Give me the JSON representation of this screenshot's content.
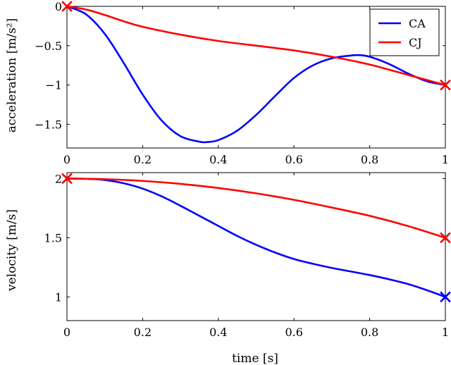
{
  "chart_data": [
    {
      "type": "line",
      "title": "",
      "xlabel": "",
      "ylabel": "acceleration [m/s²]",
      "xlim": [
        0,
        1
      ],
      "ylim": [
        -1.8,
        0
      ],
      "xticks": [
        0,
        0.2,
        0.4,
        0.6,
        0.8,
        1
      ],
      "xtick_labels": [
        "0",
        "0.2",
        "0.4",
        "0.6",
        "0.8",
        "1"
      ],
      "yticks": [
        0,
        -0.5,
        -1,
        -1.5
      ],
      "ytick_labels": [
        "0",
        "−0.5",
        "−1",
        "−1.5"
      ],
      "grid": false,
      "legend": {
        "placement": "top-right",
        "entries": [
          "CA",
          "CJ"
        ]
      },
      "series": [
        {
          "name": "CA",
          "color": "#0000ff",
          "x": [
            0,
            0.05,
            0.1,
            0.15,
            0.2,
            0.25,
            0.3,
            0.35,
            0.37,
            0.4,
            0.45,
            0.5,
            0.55,
            0.6,
            0.65,
            0.7,
            0.75,
            0.77,
            0.8,
            0.85,
            0.9,
            0.95,
            1
          ],
          "y": [
            0,
            -0.1,
            -0.35,
            -0.72,
            -1.12,
            -1.45,
            -1.65,
            -1.72,
            -1.725,
            -1.7,
            -1.58,
            -1.38,
            -1.14,
            -0.91,
            -0.75,
            -0.66,
            -0.625,
            -0.62,
            -0.64,
            -0.73,
            -0.85,
            -0.95,
            -1
          ]
        },
        {
          "name": "CJ",
          "color": "#ff0000",
          "x": [
            0,
            0.05,
            0.1,
            0.15,
            0.2,
            0.3,
            0.4,
            0.5,
            0.6,
            0.7,
            0.8,
            0.9,
            1
          ],
          "y": [
            0,
            -0.04,
            -0.11,
            -0.19,
            -0.26,
            -0.36,
            -0.44,
            -0.5,
            -0.56,
            -0.64,
            -0.74,
            -0.87,
            -1
          ]
        }
      ],
      "markers": [
        {
          "series": "CJ",
          "x": 0,
          "y": 0,
          "symbol": "x",
          "color": "#ff0000"
        },
        {
          "series": "CJ",
          "x": 1,
          "y": -1,
          "symbol": "x",
          "color": "#ff0000"
        }
      ]
    },
    {
      "type": "line",
      "title": "",
      "xlabel": "time [s]",
      "ylabel": "velocity [m/s]",
      "xlim": [
        0,
        1
      ],
      "ylim": [
        0.8,
        2.05
      ],
      "xticks": [
        0,
        0.2,
        0.4,
        0.6,
        0.8,
        1
      ],
      "xtick_labels": [
        "0",
        "0.2",
        "0.4",
        "0.6",
        "0.8",
        "1"
      ],
      "yticks": [
        2,
        1.5,
        1
      ],
      "ytick_labels": [
        "2",
        "1.5",
        "1"
      ],
      "grid": false,
      "series": [
        {
          "name": "CA",
          "color": "#0000ff",
          "x": [
            0,
            0.05,
            0.1,
            0.15,
            0.2,
            0.25,
            0.3,
            0.35,
            0.4,
            0.45,
            0.5,
            0.55,
            0.6,
            0.65,
            0.7,
            0.75,
            0.8,
            0.85,
            0.9,
            0.95,
            1
          ],
          "y": [
            2,
            1.998,
            1.988,
            1.96,
            1.915,
            1.85,
            1.77,
            1.685,
            1.6,
            1.515,
            1.44,
            1.375,
            1.32,
            1.28,
            1.245,
            1.215,
            1.185,
            1.15,
            1.11,
            1.058,
            1
          ]
        },
        {
          "name": "CJ",
          "color": "#ff0000",
          "x": [
            0,
            0.1,
            0.2,
            0.3,
            0.4,
            0.5,
            0.6,
            0.7,
            0.8,
            0.9,
            1
          ],
          "y": [
            2,
            1.995,
            1.98,
            1.955,
            1.92,
            1.875,
            1.82,
            1.755,
            1.685,
            1.6,
            1.5
          ]
        }
      ],
      "markers": [
        {
          "series": "CJ",
          "x": 0,
          "y": 2,
          "symbol": "x",
          "color": "#ff0000"
        },
        {
          "series": "CJ",
          "x": 1,
          "y": 1.5,
          "symbol": "x",
          "color": "#ff0000"
        },
        {
          "series": "CA",
          "x": 1,
          "y": 1,
          "symbol": "x",
          "color": "#0000ff"
        }
      ]
    }
  ]
}
